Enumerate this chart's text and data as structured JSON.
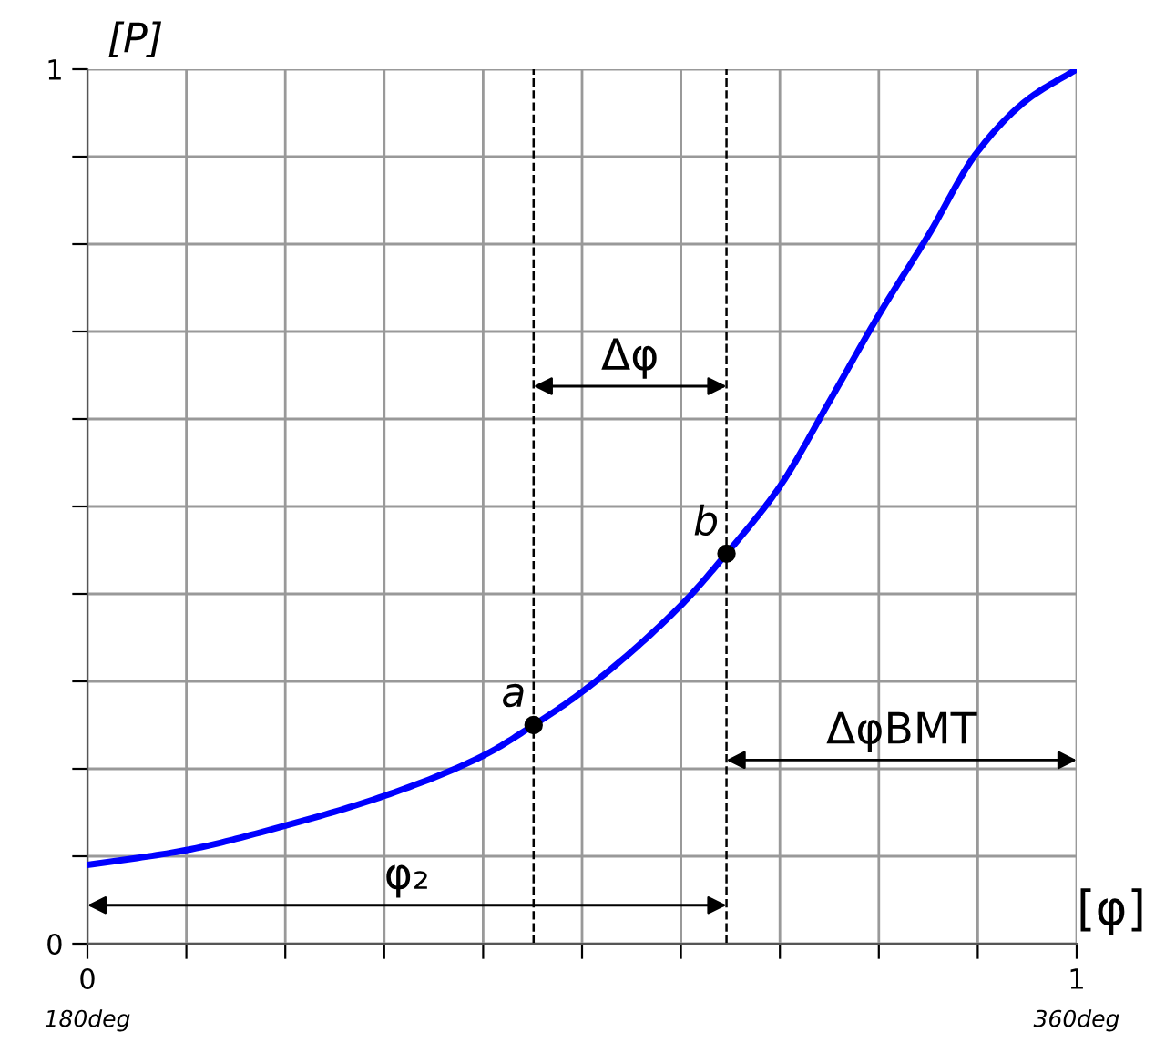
{
  "chart_data": {
    "type": "line",
    "ylabel": "[P]",
    "xlabel": "[φ]",
    "x": [
      0,
      0.1,
      0.2,
      0.3,
      0.4,
      0.451,
      0.5,
      0.6,
      0.646,
      0.7,
      0.75,
      0.8,
      0.85,
      0.9,
      0.95,
      1
    ],
    "series": [
      {
        "color": "#0000ff",
        "values": [
          0.09,
          0.107,
          0.135,
          0.169,
          0.215,
          0.25,
          0.288,
          0.387,
          0.446,
          0.523,
          0.62,
          0.719,
          0.81,
          0.906,
          0.965,
          1.0
        ]
      },
      {
        "type": "scatter",
        "color": "#000000",
        "x": [
          0.451,
          0.646
        ],
        "values": [
          0.25,
          0.446
        ],
        "marker": "circle"
      }
    ],
    "xlim": [
      0,
      1
    ],
    "ylim": [
      0,
      1
    ],
    "xticks": [
      0,
      {
        "value": 0.1,
        "label": null
      },
      {
        "value": 0.2,
        "label": null
      },
      {
        "value": 0.3,
        "label": null
      },
      {
        "value": 0.4,
        "label": null
      },
      {
        "value": 0.5,
        "label": null
      },
      {
        "value": 0.6,
        "label": null
      },
      {
        "value": 0.7,
        "label": null
      },
      {
        "value": 0.8,
        "label": null
      },
      {
        "value": 0.9,
        "label": null
      },
      1
    ],
    "yticks": [
      0,
      {
        "value": 0.1,
        "label": null
      },
      {
        "value": 0.2,
        "label": null
      },
      {
        "value": 0.3,
        "label": null
      },
      {
        "value": 0.4,
        "label": null
      },
      {
        "value": 0.5,
        "label": null
      },
      {
        "value": 0.6,
        "label": null
      },
      {
        "value": 0.7,
        "label": null
      },
      {
        "value": 0.8,
        "label": null
      },
      {
        "value": 0.9,
        "label": null
      },
      1
    ],
    "grid": true,
    "ref_lines": [
      {
        "axis": "x",
        "value": 0.451,
        "color": "#000000",
        "line_style": "dashed"
      },
      {
        "axis": "x",
        "value": 0.646,
        "color": "#000000",
        "line_style": "dashed"
      }
    ],
    "annotations": [
      {
        "text": "a",
        "x": 0.451,
        "y": 0.25
      },
      {
        "text": "b",
        "x": 0.646,
        "y": 0.446
      },
      "Δφ",
      "φ₂",
      "ΔφBMT",
      "180deg",
      "360deg"
    ]
  }
}
